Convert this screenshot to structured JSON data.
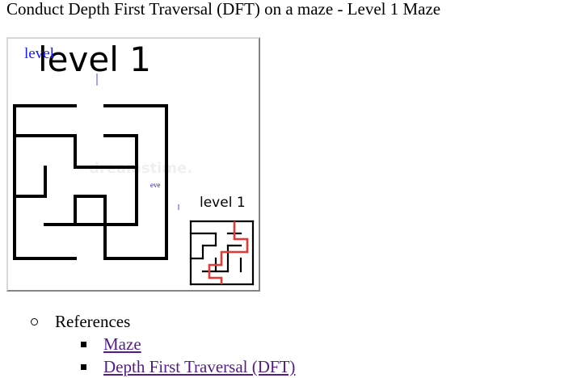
{
  "page": {
    "title": "Conduct Depth First Traversal (DFT) on a maze - Level 1 Maze"
  },
  "image": {
    "heading_text": "level 1",
    "small_heading_text": "level 1",
    "overlay_label_top": "level",
    "overlay_label_mid": "eve",
    "watermark_text": "dreamstime.",
    "path_color": "#e53935",
    "wall_color": "#000000",
    "overlay_color": "#1a1aff"
  },
  "references": {
    "label": "References",
    "links": [
      {
        "label": "Maze"
      },
      {
        "label": "Depth First Traversal (DFT)"
      }
    ]
  },
  "colors": {
    "link": "#551a8b",
    "text": "#000000"
  }
}
